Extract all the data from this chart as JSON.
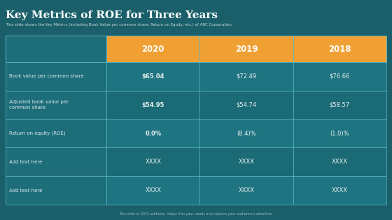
{
  "title": "Key Metrics of ROE for Three Years",
  "subtitle": "This slide shows the Key Metrics (including Book Value per common share, Return on Equity, etc.) of ABC Corporation.",
  "footer": "This slide is 100% editable. Adapt it to your needs and capture your audience's attention.",
  "background_color": "#1a5f6a",
  "header_bg_color": "#f0a033",
  "label_col_bg_color": "#1e6e7a",
  "data_row_even_bg": "#1e7480",
  "data_row_odd_bg": "#1a6b76",
  "border_color": "#5ab8c8",
  "title_color": "#ffffff",
  "subtitle_color": "#c8d8da",
  "header_text_color": "#ffffff",
  "label_text_color": "#d8e8ea",
  "data_text_color": "#e8f0f0",
  "footer_color": "#9ab8bc",
  "columns": [
    "",
    "2020",
    "2019",
    "2018"
  ],
  "rows": [
    {
      "label": "Book value per common share",
      "values": [
        "$65.04",
        "$72.49",
        "$76.66"
      ],
      "bold": [
        true,
        false,
        false
      ]
    },
    {
      "label": "Adjusted book value per\ncommon share",
      "values": [
        "$54.95",
        "$54.74",
        "$58.57"
      ],
      "bold": [
        true,
        false,
        false
      ]
    },
    {
      "label": "Return on equity (ROE)",
      "values": [
        "0.0%",
        "(8.4)%",
        "(1.0)%"
      ],
      "bold": [
        true,
        false,
        false
      ]
    },
    {
      "label": "Add text here",
      "values": [
        "XXXX",
        "XXXX",
        "XXXX"
      ],
      "bold": [
        false,
        false,
        false
      ]
    },
    {
      "label": "Add text here",
      "values": [
        "XXXX",
        "XXXX",
        "XXXX"
      ],
      "bold": [
        false,
        false,
        false
      ]
    }
  ]
}
